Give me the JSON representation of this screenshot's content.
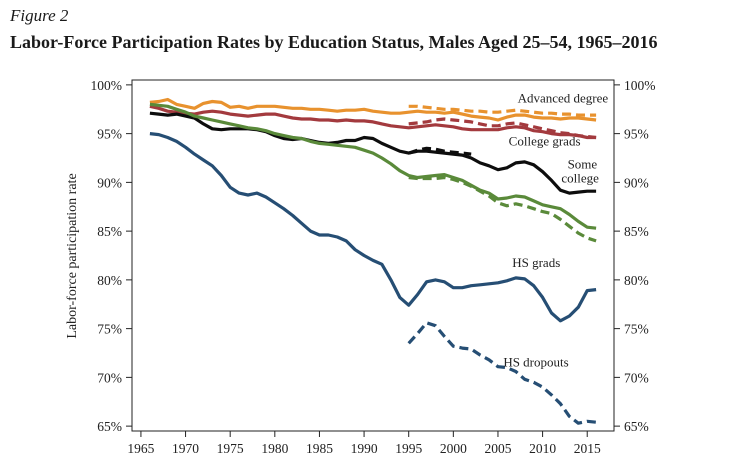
{
  "figure_label": "Figure 2",
  "chart_data": {
    "type": "line",
    "title": "Labor-Force Participation Rates by Education Status, Males Aged 25–54, 1965–2016",
    "xlabel": "",
    "ylabel": "Labor-force participation rate",
    "xlim": [
      1964,
      2018
    ],
    "ylim": [
      64.5,
      100.5
    ],
    "x_ticks": [
      1965,
      1970,
      1975,
      1980,
      1985,
      1990,
      1995,
      2000,
      2005,
      2010,
      2015
    ],
    "y_ticks": [
      65,
      70,
      75,
      80,
      85,
      90,
      95,
      100
    ],
    "y_tick_labels": [
      "65%",
      "70%",
      "75%",
      "80%",
      "85%",
      "90%",
      "95%",
      "100%"
    ],
    "right_axis_duplicate": true,
    "grid": false,
    "legend": "none (direct labels)",
    "series": [
      {
        "name": "Advanced degree",
        "color": "#e8922e",
        "style": "solid",
        "x": [
          1966,
          1967,
          1968,
          1969,
          1970,
          1971,
          1972,
          1973,
          1974,
          1975,
          1976,
          1977,
          1978,
          1979,
          1980,
          1981,
          1982,
          1983,
          1984,
          1985,
          1986,
          1987,
          1988,
          1989,
          1990,
          1991,
          1992,
          1993,
          1994,
          1995,
          1996,
          1997,
          1998,
          1999,
          2000,
          2001,
          2002,
          2003,
          2004,
          2005,
          2006,
          2007,
          2008,
          2009,
          2010,
          2011,
          2012,
          2013,
          2014,
          2015,
          2016
        ],
        "y": [
          98.2,
          98.3,
          98.5,
          98.0,
          97.8,
          97.6,
          98.1,
          98.3,
          98.2,
          97.7,
          97.8,
          97.6,
          97.8,
          97.8,
          97.8,
          97.7,
          97.6,
          97.6,
          97.5,
          97.5,
          97.4,
          97.3,
          97.4,
          97.4,
          97.5,
          97.3,
          97.2,
          97.1,
          97.1,
          97.2,
          97.3,
          97.2,
          97.2,
          97.1,
          97.2,
          97.0,
          96.8,
          96.7,
          96.6,
          96.4,
          96.7,
          96.9,
          96.9,
          96.7,
          96.6,
          96.6,
          96.5,
          96.6,
          96.6,
          96.5,
          96.4
        ]
      },
      {
        "name": "Advanced degree (dashed)",
        "color": "#e8922e",
        "style": "dashed",
        "x": [
          1995,
          1996,
          1997,
          1998,
          1999,
          2000,
          2001,
          2002,
          2003,
          2004,
          2005,
          2006,
          2007,
          2008,
          2009,
          2010,
          2011,
          2012,
          2013,
          2014,
          2015,
          2016
        ],
        "y": [
          97.8,
          97.8,
          97.7,
          97.6,
          97.5,
          97.5,
          97.4,
          97.3,
          97.3,
          97.2,
          97.2,
          97.3,
          97.4,
          97.3,
          97.2,
          97.1,
          97.1,
          97.0,
          97.0,
          96.9,
          96.9,
          96.9
        ]
      },
      {
        "name": "College grads",
        "color": "#a33a3e",
        "style": "solid",
        "x": [
          1966,
          1967,
          1968,
          1969,
          1970,
          1971,
          1972,
          1973,
          1974,
          1975,
          1976,
          1977,
          1978,
          1979,
          1980,
          1981,
          1982,
          1983,
          1984,
          1985,
          1986,
          1987,
          1988,
          1989,
          1990,
          1991,
          1992,
          1993,
          1994,
          1995,
          1996,
          1997,
          1998,
          1999,
          2000,
          2001,
          2002,
          2003,
          2004,
          2005,
          2006,
          2007,
          2008,
          2009,
          2010,
          2011,
          2012,
          2013,
          2014,
          2015,
          2016
        ],
        "y": [
          97.8,
          97.6,
          97.3,
          97.2,
          97.1,
          97.0,
          97.2,
          97.3,
          97.2,
          97.0,
          96.9,
          96.8,
          96.9,
          97.0,
          97.0,
          96.8,
          96.6,
          96.5,
          96.5,
          96.4,
          96.4,
          96.3,
          96.4,
          96.3,
          96.3,
          96.2,
          96.0,
          95.8,
          95.7,
          95.6,
          95.7,
          95.8,
          95.9,
          95.8,
          95.7,
          95.5,
          95.4,
          95.4,
          95.4,
          95.4,
          95.6,
          95.7,
          95.6,
          95.3,
          95.2,
          95.0,
          94.9,
          94.9,
          94.8,
          94.6,
          94.6
        ]
      },
      {
        "name": "College grads (dashed)",
        "color": "#a33a3e",
        "style": "dashed",
        "x": [
          1995,
          1996,
          1997,
          1998,
          1999,
          2000,
          2001,
          2002,
          2003,
          2004,
          2005,
          2006,
          2007,
          2008,
          2009,
          2010,
          2011,
          2012,
          2013,
          2014,
          2015,
          2016
        ],
        "y": [
          96.0,
          96.1,
          96.2,
          96.4,
          96.5,
          96.4,
          96.3,
          96.2,
          96.0,
          95.8,
          95.8,
          96.0,
          96.1,
          95.9,
          95.7,
          95.5,
          95.3,
          95.1,
          95.0,
          94.8,
          94.7,
          94.6
        ]
      },
      {
        "name": "Some college",
        "color": "#0d0d0d",
        "style": "solid",
        "x": [
          1966,
          1967,
          1968,
          1969,
          1970,
          1971,
          1972,
          1973,
          1974,
          1975,
          1976,
          1977,
          1978,
          1979,
          1980,
          1981,
          1982,
          1983,
          1984,
          1985,
          1986,
          1987,
          1988,
          1989,
          1990,
          1991,
          1992,
          1993,
          1994,
          1995,
          1996,
          1997,
          1998,
          1999,
          2000,
          2001,
          2002,
          2003,
          2004,
          2005,
          2006,
          2007,
          2008,
          2009,
          2010,
          2011,
          2012,
          2013,
          2014,
          2015,
          2016
        ],
        "y": [
          97.1,
          97.0,
          96.9,
          97.0,
          96.8,
          96.6,
          96.0,
          95.5,
          95.4,
          95.5,
          95.5,
          95.5,
          95.4,
          95.2,
          94.8,
          94.5,
          94.4,
          94.5,
          94.3,
          94.1,
          94.0,
          94.1,
          94.3,
          94.3,
          94.6,
          94.5,
          94.0,
          93.6,
          93.2,
          93.0,
          93.2,
          93.2,
          93.1,
          93.0,
          92.9,
          92.8,
          92.5,
          92.0,
          91.7,
          91.3,
          91.5,
          92.0,
          92.1,
          91.8,
          91.1,
          90.2,
          89.2,
          88.9,
          89.0,
          89.1,
          89.1
        ]
      },
      {
        "name": "Some college (dashed)",
        "color": "#0d0d0d",
        "style": "dashed",
        "x": [
          1995,
          1996,
          1997,
          1998,
          1999,
          2000,
          2001,
          2002
        ],
        "y": [
          93.0,
          93.3,
          93.5,
          93.4,
          93.2,
          93.1,
          93.0,
          92.9
        ]
      },
      {
        "name": "HS grads",
        "color": "#5a8a3a",
        "style": "solid",
        "x": [
          1966,
          1967,
          1968,
          1969,
          1970,
          1971,
          1972,
          1973,
          1974,
          1975,
          1976,
          1977,
          1978,
          1979,
          1980,
          1981,
          1982,
          1983,
          1984,
          1985,
          1986,
          1987,
          1988,
          1989,
          1990,
          1991,
          1992,
          1993,
          1994,
          1995,
          1996,
          1997,
          1998,
          1999,
          2000,
          2001,
          2002,
          2003,
          2004,
          2005,
          2006,
          2007,
          2008,
          2009,
          2010,
          2011,
          2012,
          2013,
          2014,
          2015,
          2016
        ],
        "y": [
          98.0,
          97.9,
          97.8,
          97.5,
          97.2,
          96.8,
          96.6,
          96.4,
          96.2,
          96.0,
          95.8,
          95.6,
          95.5,
          95.3,
          95.0,
          94.8,
          94.6,
          94.5,
          94.2,
          94.0,
          93.9,
          93.8,
          93.7,
          93.6,
          93.3,
          93.0,
          92.5,
          91.9,
          91.2,
          90.7,
          90.5,
          90.6,
          90.7,
          90.8,
          90.5,
          90.2,
          89.7,
          89.2,
          88.9,
          88.3,
          88.4,
          88.6,
          88.5,
          88.1,
          87.7,
          87.5,
          87.3,
          86.7,
          86.0,
          85.4,
          85.3
        ]
      },
      {
        "name": "HS grads (dashed)",
        "color": "#5a8a3a",
        "style": "dashed",
        "x": [
          1995,
          1996,
          1997,
          1998,
          1999,
          2000,
          2001,
          2002,
          2003,
          2004,
          2005,
          2006,
          2007,
          2008,
          2009,
          2010,
          2011,
          2012,
          2013,
          2014,
          2015,
          2016
        ],
        "y": [
          90.5,
          90.4,
          90.4,
          90.4,
          90.5,
          90.3,
          90.0,
          89.6,
          89.1,
          88.6,
          87.9,
          87.6,
          87.8,
          87.6,
          87.3,
          87.0,
          86.8,
          86.2,
          85.5,
          84.8,
          84.3,
          84.0
        ]
      },
      {
        "name": "HS dropouts",
        "color": "#264e74",
        "style": "solid",
        "x": [
          1966,
          1967,
          1968,
          1969,
          1970,
          1971,
          1972,
          1973,
          1974,
          1975,
          1976,
          1977,
          1978,
          1979,
          1980,
          1981,
          1982,
          1983,
          1984,
          1985,
          1986,
          1987,
          1988,
          1989,
          1990,
          1991,
          1992,
          1993,
          1994,
          1995,
          1996,
          1997,
          1998,
          1999,
          2000,
          2001,
          2002,
          2003,
          2004,
          2005,
          2006,
          2007,
          2008,
          2009,
          2010,
          2011,
          2012,
          2013,
          2014,
          2015,
          2016
        ],
        "y": [
          95.0,
          94.9,
          94.6,
          94.2,
          93.6,
          92.9,
          92.3,
          91.7,
          90.7,
          89.5,
          88.9,
          88.7,
          88.9,
          88.5,
          87.9,
          87.3,
          86.6,
          85.8,
          85.0,
          84.6,
          84.6,
          84.4,
          84.0,
          83.1,
          82.5,
          82.0,
          81.6,
          80.0,
          78.2,
          77.4,
          78.5,
          79.8,
          80.0,
          79.8,
          79.2,
          79.2,
          79.4,
          79.5,
          79.6,
          79.7,
          79.9,
          80.2,
          80.1,
          79.4,
          78.2,
          76.6,
          75.8,
          76.3,
          77.2,
          78.9,
          79.0
        ]
      },
      {
        "name": "HS dropouts (dashed)",
        "color": "#264e74",
        "style": "dashed",
        "x": [
          1995,
          1996,
          1997,
          1998,
          1999,
          2000,
          2001,
          2002,
          2003,
          2004,
          2005,
          2006,
          2007,
          2008,
          2009,
          2010,
          2011,
          2012,
          2013,
          2014,
          2015,
          2016
        ],
        "y": [
          73.5,
          74.5,
          75.6,
          75.3,
          74.2,
          73.2,
          73.0,
          72.9,
          72.3,
          71.8,
          71.1,
          71.0,
          70.6,
          69.8,
          69.5,
          69.0,
          68.2,
          67.3,
          66.0,
          65.3,
          65.5,
          65.4
        ]
      }
    ],
    "annotations": [
      {
        "text": "Advanced degree",
        "x": 2007.2,
        "y": 98.2
      },
      {
        "text": "College grads",
        "x": 2006.2,
        "y": 93.8
      },
      {
        "text": "Some",
        "x": 2012.8,
        "y": 91.4
      },
      {
        "text": "college",
        "x": 2012.1,
        "y": 90.0
      },
      {
        "text": "HS grads",
        "x": 2006.6,
        "y": 81.3
      },
      {
        "text": "HS dropouts",
        "x": 2005.6,
        "y": 71.1
      }
    ]
  }
}
